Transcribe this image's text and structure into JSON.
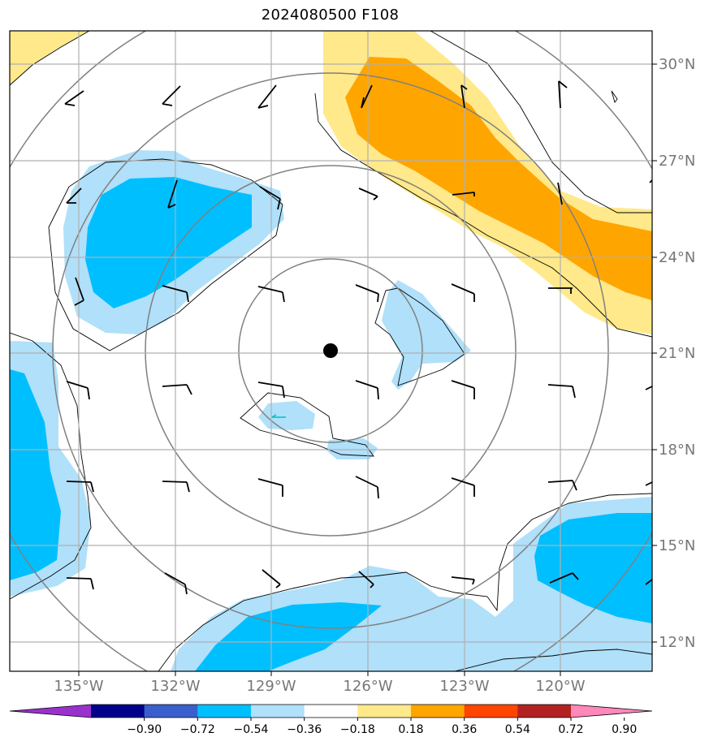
{
  "title": "2024080500 F108",
  "map": {
    "lat_labels": [
      "30°N",
      "27°N",
      "24°N",
      "21°N",
      "18°N",
      "15°N",
      "12°N"
    ],
    "lon_labels": [
      "135°W",
      "132°W",
      "129°W",
      "126°W",
      "123°W",
      "120°W"
    ],
    "center_marker": "storm-center-dot"
  },
  "colorbar": {
    "colors": [
      "#9932cc",
      "#00008b",
      "#3a5fcd",
      "#00bfff",
      "#b0e0fa",
      "#ffffff",
      "#ffe98a",
      "#ffa500",
      "#ff4500",
      "#b22222",
      "#ff88bb"
    ],
    "labels": [
      "−0.90",
      "−0.72",
      "−0.54",
      "−0.36",
      "−0.18",
      "0.18",
      "0.36",
      "0.54",
      "0.72",
      "0.90"
    ]
  }
}
